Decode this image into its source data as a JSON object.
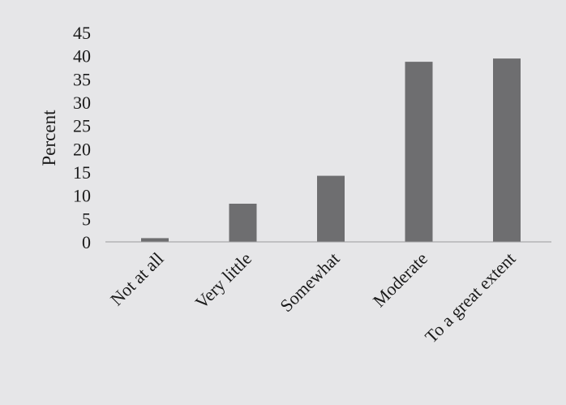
{
  "chart_data": {
    "type": "bar",
    "title": "",
    "xlabel": "",
    "ylabel": "Percent",
    "categories": [
      "Not at all",
      "Very little",
      "Somewhat",
      "Moderate",
      "To a great extent"
    ],
    "values": [
      0.8,
      8.2,
      14.2,
      38.7,
      39.4
    ],
    "ylim": [
      0,
      45
    ],
    "yticks": [
      "0",
      "5",
      "10",
      "15",
      "20",
      "25",
      "30",
      "35",
      "40",
      "45"
    ],
    "grid": false,
    "legend": "none",
    "colors": {
      "bar": "#6e6e70",
      "background": "#e6e6e8",
      "axis": "#9a9a9c",
      "text": "#1a1a1a"
    }
  }
}
